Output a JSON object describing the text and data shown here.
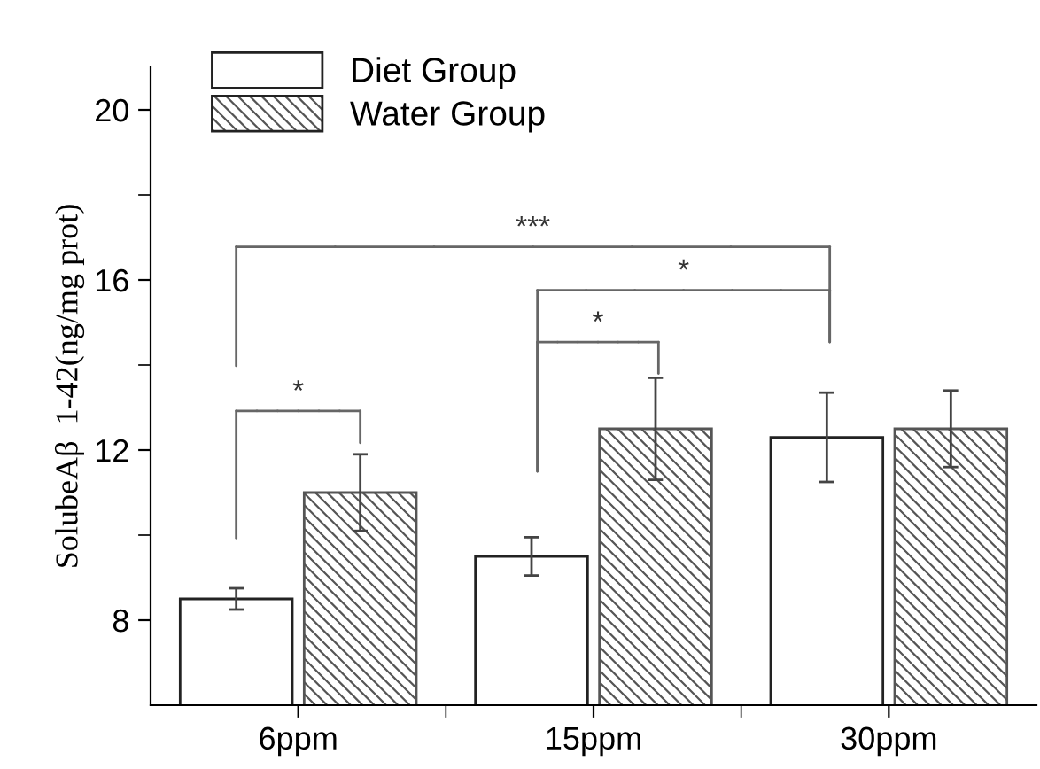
{
  "chart_data": {
    "type": "bar",
    "ylabel": "SolubeAβ  1-42(ng/mg prot)",
    "categories": [
      "6ppm",
      "15ppm",
      "30ppm"
    ],
    "series": [
      {
        "name": "Diet Group",
        "color": "#ffffff",
        "values": [
          8.5,
          9.5,
          12.3
        ],
        "errors": [
          0.25,
          0.45,
          1.05
        ]
      },
      {
        "name": "Water Group",
        "color": "#555555",
        "values": [
          11.0,
          12.5,
          12.5
        ],
        "errors": [
          0.9,
          1.2,
          0.9
        ]
      }
    ],
    "ylim": [
      6,
      21
    ],
    "yticks": [
      8,
      {
        "value": 10,
        "label": null
      },
      12,
      {
        "value": 14,
        "label": null
      },
      16,
      {
        "value": 18,
        "label": null
      },
      20
    ],
    "annotations": [
      "***",
      "*",
      "*",
      "*"
    ],
    "legend": "top left",
    "grid": false
  }
}
